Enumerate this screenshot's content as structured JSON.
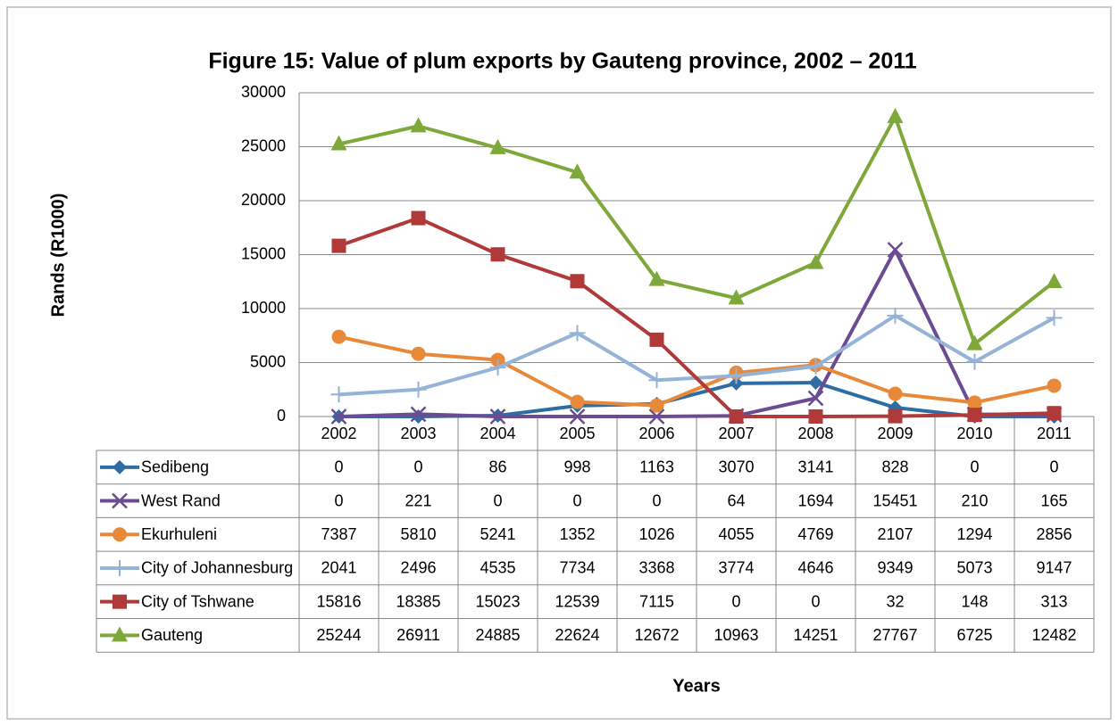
{
  "chart_data": {
    "type": "line",
    "title": "Figure 15: Value of plum exports by Gauteng province, 2002 – 2011",
    "y_label": "Rands (R1000)",
    "x_label": "Years",
    "categories": [
      "2002",
      "2003",
      "2004",
      "2005",
      "2006",
      "2007",
      "2008",
      "2009",
      "2010",
      "2011"
    ],
    "ylim": [
      0,
      30000
    ],
    "yticks": [
      0,
      5000,
      10000,
      15000,
      20000,
      25000,
      30000
    ],
    "grid": true,
    "series": [
      {
        "name": "Sedibeng",
        "color": "#2e6ca4",
        "marker": "diamond",
        "values": [
          0,
          0,
          86,
          998,
          1163,
          3070,
          3141,
          828,
          0,
          0
        ]
      },
      {
        "name": "West Rand",
        "color": "#6b4c93",
        "marker": "x",
        "values": [
          0,
          221,
          0,
          0,
          0,
          64,
          1694,
          15451,
          210,
          165
        ]
      },
      {
        "name": "Ekurhuleni",
        "color": "#e8893a",
        "marker": "circle",
        "values": [
          7387,
          5810,
          5241,
          1352,
          1026,
          4055,
          4769,
          2107,
          1294,
          2856
        ]
      },
      {
        "name": "City of Johannesburg",
        "color": "#95b3d7",
        "marker": "plus",
        "values": [
          2041,
          2496,
          4535,
          7734,
          3368,
          3774,
          4646,
          9349,
          5073,
          9147
        ]
      },
      {
        "name": "City of Tshwane",
        "color": "#b03a3a",
        "marker": "square",
        "values": [
          15816,
          18385,
          15023,
          12539,
          7115,
          0,
          0,
          32,
          148,
          313
        ]
      },
      {
        "name": "Gauteng",
        "color": "#7fa83a",
        "marker": "triangle",
        "values": [
          25244,
          26911,
          24885,
          22624,
          12672,
          10963,
          14251,
          27767,
          6725,
          12482
        ]
      }
    ]
  }
}
